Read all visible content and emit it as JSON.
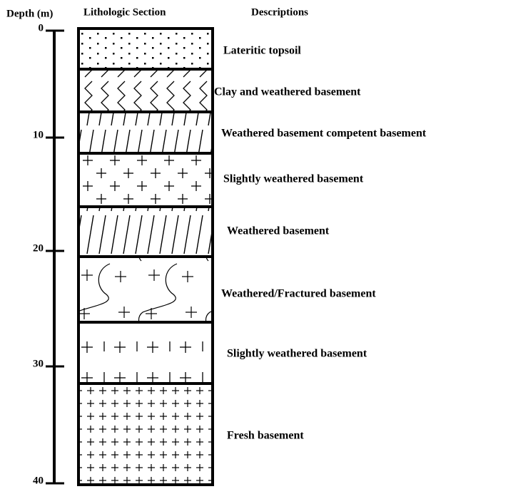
{
  "headers": {
    "depth": "Depth (m)",
    "section": "Lithologic Section",
    "descriptions": "Descriptions"
  },
  "depth_ticks": [
    "0",
    "10",
    "20",
    "30",
    "40"
  ],
  "layers": [
    {
      "description": "Lateritic topsoil"
    },
    {
      "description": "Clay and weathered basement"
    },
    {
      "description": "Weathered basement competent basement"
    },
    {
      "description": "Slightly weathered basement"
    },
    {
      "description": "Weathered basement"
    },
    {
      "description": "Weathered/Fractured basement"
    },
    {
      "description": "Slightly weathered basement"
    },
    {
      "description": "Fresh basement"
    }
  ]
}
